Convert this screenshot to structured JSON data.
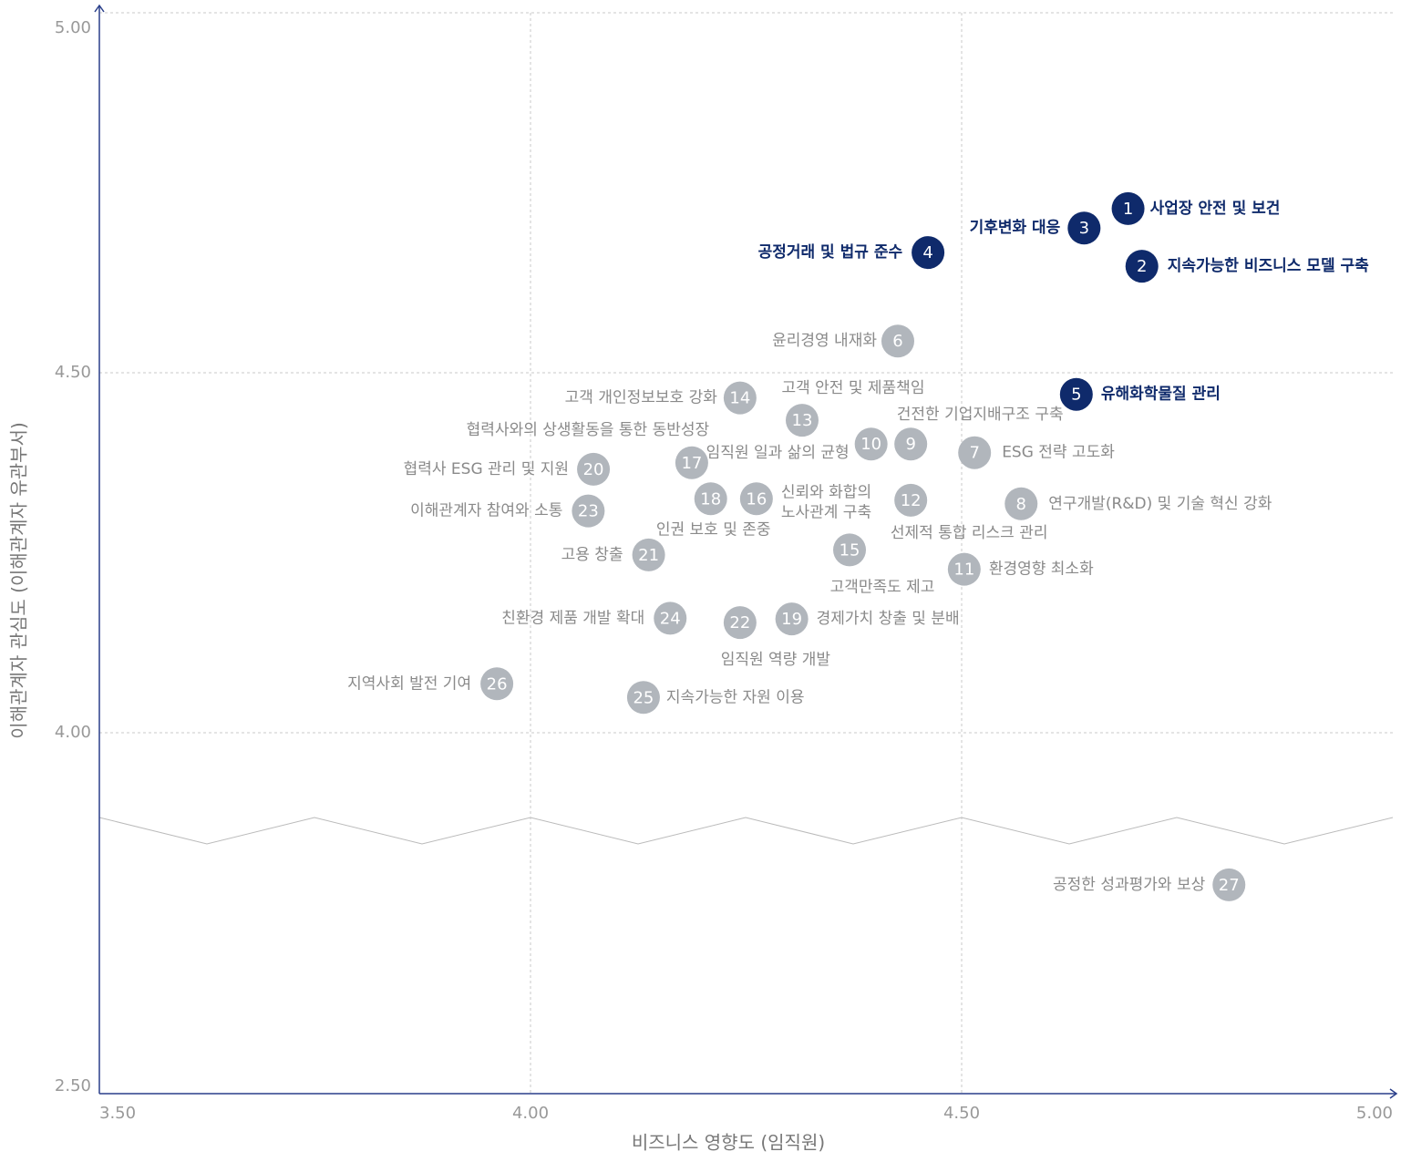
{
  "chart_data": {
    "type": "scatter",
    "x_label": "비즈니스 영향도 (임직원)",
    "y_label": "이해관계자 관심도 (이해관계자 유관부서)",
    "xlim": [
      3.5,
      5.0
    ],
    "xticks": [
      {
        "value": 3.5,
        "label": "3.50"
      },
      {
        "value": 4.0,
        "label": "4.00"
      },
      {
        "value": 4.5,
        "label": "4.50"
      },
      {
        "value": 5.0,
        "label": "5.00"
      }
    ],
    "ylim": [
      2.5,
      5.0
    ],
    "yticks": [
      {
        "value": 2.5,
        "label": "2.50"
      },
      {
        "value": 4.0,
        "label": "4.00"
      },
      {
        "value": 4.5,
        "label": "4.50"
      },
      {
        "value": 5.0,
        "label": "5.00"
      }
    ],
    "axis_break": true,
    "grid": true,
    "highlight_color": "#0f2a6b",
    "color": "#b1b6bc",
    "points": [
      {
        "number": "1",
        "label": "사업장 안전 및 보건",
        "x": 4.693,
        "y": 4.728,
        "highlight": true
      },
      {
        "number": "2",
        "label": "지속가능한 비즈니스 모델 구축",
        "x": 4.709,
        "y": 4.648,
        "highlight": true
      },
      {
        "number": "3",
        "label": "기후변화 대응",
        "x": 4.642,
        "y": 4.701,
        "highlight": true
      },
      {
        "number": "4",
        "label": "공정거래 및 법규 준수",
        "x": 4.461,
        "y": 4.667,
        "highlight": true
      },
      {
        "number": "5",
        "label": "유해화학물질 관리",
        "x": 4.633,
        "y": 4.47,
        "highlight": true
      },
      {
        "number": "6",
        "label": "윤리경영 내재화",
        "x": 4.426,
        "y": 4.544,
        "highlight": false
      },
      {
        "number": "7",
        "label": "ESG 전략 고도화",
        "x": 4.515,
        "y": 4.389,
        "highlight": false
      },
      {
        "number": "8",
        "label": "연구개발(R&D) 및 기술 혁신 강화",
        "x": 4.569,
        "y": 4.318,
        "highlight": false
      },
      {
        "number": "9",
        "label": "건전한 기업지배구조 구축",
        "x": 4.441,
        "y": 4.401,
        "highlight": false
      },
      {
        "number": "10",
        "label": "임직원 일과 삶의 균형",
        "x": 4.395,
        "y": 4.401,
        "highlight": false
      },
      {
        "number": "11",
        "label": "환경영향 최소화",
        "x": 4.503,
        "y": 4.227,
        "highlight": false
      },
      {
        "number": "12",
        "label": "선제적 통합 리스크 관리",
        "x": 4.441,
        "y": 4.323,
        "highlight": false
      },
      {
        "number": "13",
        "label": "고객 안전 및 제품책임",
        "x": 4.315,
        "y": 4.434,
        "highlight": false
      },
      {
        "number": "14",
        "label": "고객 개인정보보호 강화",
        "x": 4.243,
        "y": 4.465,
        "highlight": false
      },
      {
        "number": "15",
        "label": "고객만족도 제고",
        "x": 4.37,
        "y": 4.254,
        "highlight": false
      },
      {
        "number": "16",
        "label": [
          "신뢰와 화합의",
          "노사관계 구축"
        ],
        "x": 4.262,
        "y": 4.325,
        "highlight": false
      },
      {
        "number": "17",
        "label": "협력사와의 상생활동을 통한 동반성장",
        "x": 4.187,
        "y": 4.375,
        "highlight": false
      },
      {
        "number": "18",
        "label": "인권 보호 및 존중",
        "x": 4.209,
        "y": 4.325,
        "highlight": false
      },
      {
        "number": "19",
        "label": "경제가치 창출 및 분배",
        "x": 4.303,
        "y": 4.158,
        "highlight": false
      },
      {
        "number": "20",
        "label": "협력사 ESG 관리 및 지원",
        "x": 4.073,
        "y": 4.366,
        "highlight": false
      },
      {
        "number": "21",
        "label": "고용 창출",
        "x": 4.137,
        "y": 4.247,
        "highlight": false
      },
      {
        "number": "22",
        "label": "임직원 역량 개발",
        "x": 4.243,
        "y": 4.153,
        "highlight": false
      },
      {
        "number": "23",
        "label": "이해관계자 참여와 소통",
        "x": 4.067,
        "y": 4.308,
        "highlight": false
      },
      {
        "number": "24",
        "label": "친환경 제품 개발 확대",
        "x": 4.162,
        "y": 4.159,
        "highlight": false
      },
      {
        "number": "25",
        "label": "지속가능한 자원 이용",
        "x": 4.131,
        "y": 4.049,
        "highlight": false
      },
      {
        "number": "26",
        "label": "지역사회 발전 기여",
        "x": 3.961,
        "y": 4.068,
        "highlight": false
      },
      {
        "number": "27",
        "label": "공정한 성과평가와 보상",
        "x": 4.81,
        "y": 2.79,
        "highlight": false
      }
    ]
  }
}
